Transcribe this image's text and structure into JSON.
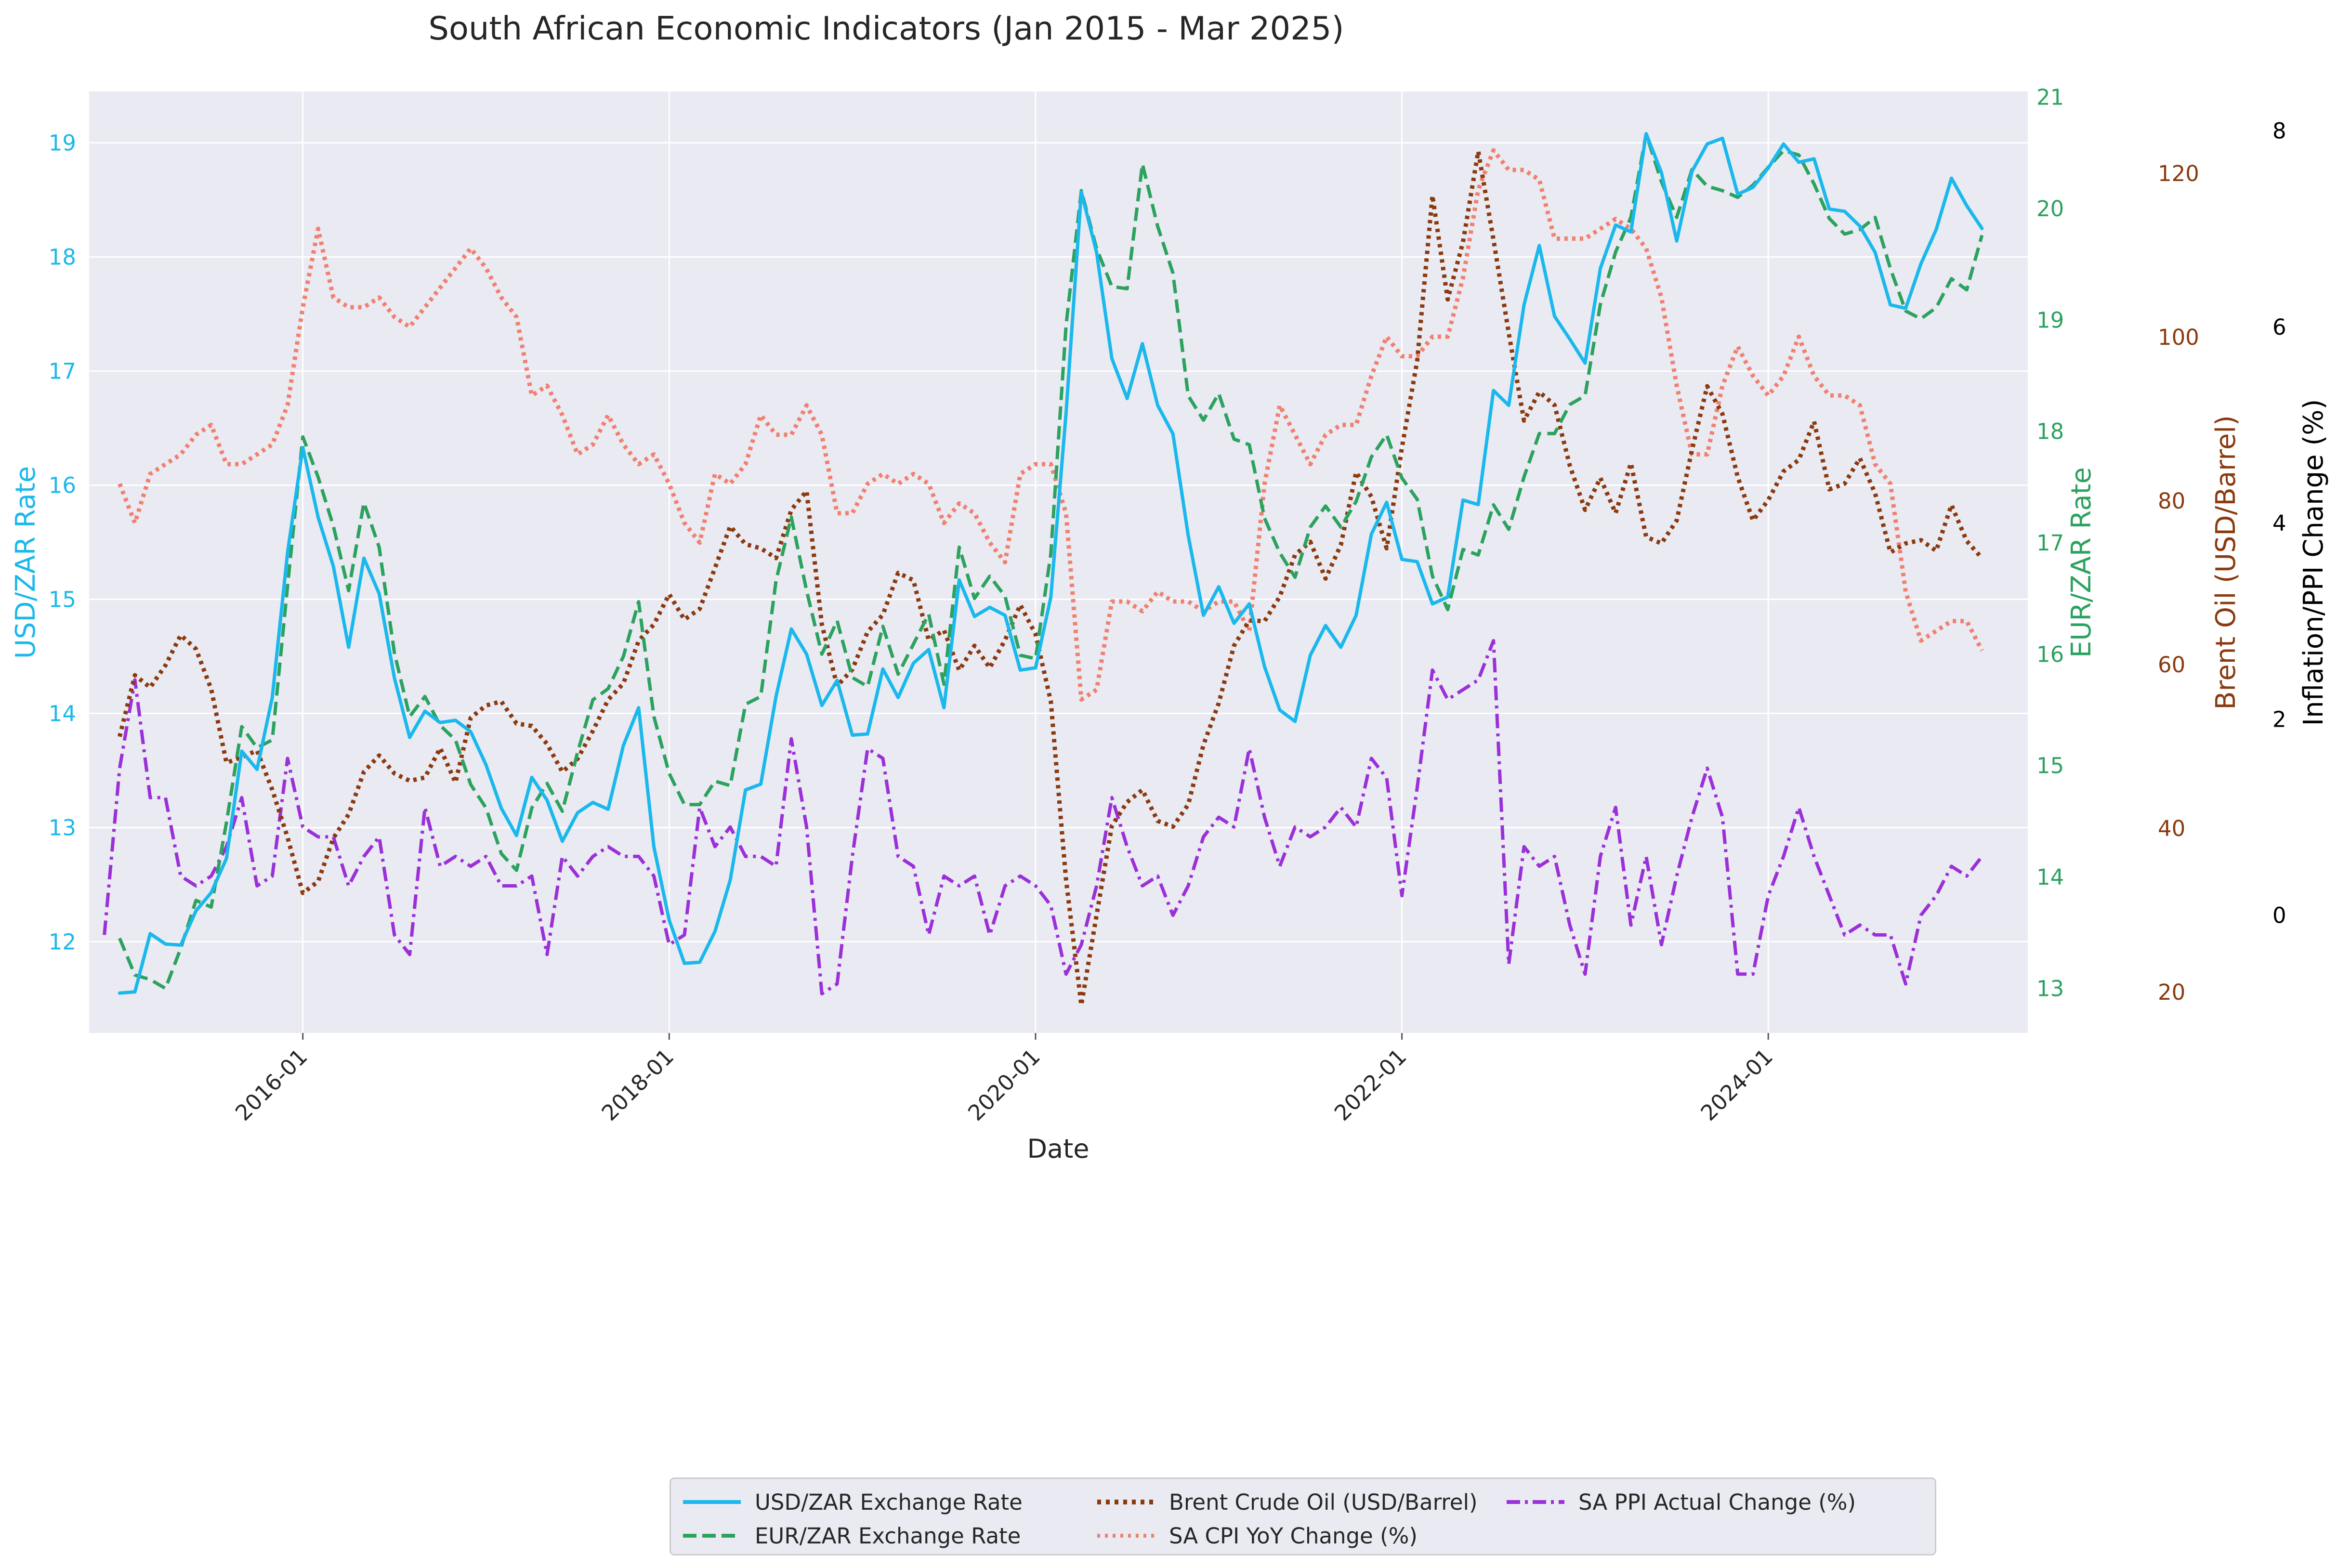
{
  "chart_data": {
    "type": "line",
    "title": "South African Economic Indicators (Jan 2015 - Mar 2025)",
    "xlabel": "Date",
    "x_tick_labels": [
      "2016-01",
      "2018-01",
      "2020-01",
      "2022-01",
      "2024-01"
    ],
    "x_range": [
      "2014-11",
      "2025-06"
    ],
    "grid": true,
    "legend_position": "bottom-center",
    "axes": {
      "usd_zar": {
        "label": "USD/ZAR Rate",
        "side": "left",
        "range": [
          11.2,
          19.45
        ],
        "ticks": [
          "12",
          "13",
          "14",
          "15",
          "16",
          "17",
          "18",
          "19"
        ],
        "color": "#1ab8ec"
      },
      "eur_zar": {
        "label": "EUR/ZAR Rate",
        "side": "right",
        "range": [
          12.6,
          21.05
        ],
        "ticks": [
          "13",
          "14",
          "15",
          "16",
          "17",
          "18",
          "19",
          "20",
          "21"
        ],
        "color": "#2ca25f"
      },
      "brent": {
        "label": "Brent Oil (USD/Barrel)",
        "side": "right",
        "range": [
          15,
          130
        ],
        "ticks": [
          "20",
          "40",
          "60",
          "80",
          "100",
          "120"
        ],
        "color": "#8b3a0f"
      },
      "inflation": {
        "label": "Inflation/PPI Change (%)",
        "side": "right",
        "range": [
          -1.2,
          8.4
        ],
        "ticks": [
          "0",
          "2",
          "4",
          "6",
          "8"
        ],
        "color": "#000000"
      }
    },
    "series": [
      {
        "name": "USD/ZAR Exchange Rate",
        "axis": "usd_zar",
        "color": "#1ab8ec",
        "style": "solid",
        "start": "2015-01",
        "values": [
          11.55,
          11.56,
          12.07,
          11.98,
          11.97,
          12.27,
          12.43,
          12.73,
          13.67,
          13.51,
          14.14,
          15.41,
          16.33,
          15.72,
          15.29,
          14.58,
          15.36,
          15.05,
          14.31,
          13.79,
          14.02,
          13.92,
          13.94,
          13.84,
          13.55,
          13.17,
          12.93,
          13.44,
          13.24,
          12.88,
          13.13,
          13.22,
          13.16,
          13.72,
          14.05,
          12.83,
          12.19,
          11.81,
          11.82,
          12.09,
          12.54,
          13.33,
          13.38,
          14.15,
          14.74,
          14.52,
          14.07,
          14.29,
          13.81,
          13.82,
          14.39,
          14.14,
          14.44,
          14.56,
          14.05,
          15.17,
          14.85,
          14.93,
          14.86,
          14.38,
          14.4,
          15.02,
          16.63,
          18.57,
          18.04,
          17.11,
          16.76,
          17.24,
          16.7,
          16.45,
          15.56,
          14.86,
          15.11,
          14.79,
          14.96,
          14.41,
          14.03,
          13.93,
          14.51,
          14.77,
          14.58,
          14.86,
          15.57,
          15.85,
          15.35,
          15.33,
          14.96,
          15.02,
          15.87,
          15.83,
          16.83,
          16.7,
          17.58,
          18.1,
          17.48,
          17.28,
          17.07,
          17.9,
          18.28,
          18.22,
          19.08,
          18.74,
          18.14,
          18.75,
          18.99,
          19.04,
          18.55,
          18.61,
          18.78,
          18.99,
          18.83,
          18.86,
          18.42,
          18.4,
          18.27,
          18.04,
          17.58,
          17.55,
          17.94,
          18.24,
          18.69,
          18.45,
          18.25
        ]
      },
      {
        "name": "EUR/ZAR Exchange Rate",
        "axis": "eur_zar",
        "color": "#2ca25f",
        "style": "dashed",
        "start": "2015-01",
        "values": [
          13.45,
          13.12,
          13.08,
          13.0,
          13.36,
          13.79,
          13.73,
          14.49,
          15.35,
          15.16,
          15.23,
          16.61,
          17.95,
          17.59,
          17.15,
          16.57,
          17.36,
          16.96,
          16.01,
          15.44,
          15.62,
          15.36,
          15.23,
          14.83,
          14.62,
          14.21,
          14.06,
          14.62,
          14.84,
          14.59,
          15.12,
          15.59,
          15.69,
          15.98,
          16.47,
          15.44,
          14.93,
          14.65,
          14.65,
          14.86,
          14.82,
          15.55,
          15.62,
          16.66,
          17.23,
          16.57,
          16.0,
          16.3,
          15.79,
          15.71,
          16.25,
          15.82,
          16.09,
          16.36,
          15.73,
          16.96,
          16.5,
          16.7,
          16.52,
          15.99,
          15.96,
          16.9,
          18.95,
          20.16,
          19.64,
          19.3,
          19.28,
          20.4,
          19.84,
          19.42,
          18.32,
          18.1,
          18.34,
          17.93,
          17.88,
          17.22,
          16.91,
          16.69,
          17.14,
          17.33,
          17.14,
          17.37,
          17.77,
          17.97,
          17.58,
          17.39,
          16.7,
          16.4,
          16.94,
          16.89,
          17.34,
          17.12,
          17.59,
          17.98,
          17.98,
          18.24,
          18.32,
          19.14,
          19.61,
          19.92,
          20.67,
          20.24,
          19.92,
          20.35,
          20.2,
          20.16,
          20.1,
          20.21,
          20.37,
          20.52,
          20.48,
          20.22,
          19.91,
          19.77,
          19.81,
          19.92,
          19.46,
          19.08,
          19.01,
          19.11,
          19.37,
          19.27,
          19.76
        ]
      },
      {
        "name": "Brent Crude Oil (USD/Barrel)",
        "axis": "brent",
        "color": "#8b3a0f",
        "style": "dotted",
        "start": "2015-01",
        "values": [
          51.2,
          58.7,
          57.2,
          59.9,
          63.6,
          61.9,
          57.0,
          48.0,
          48.7,
          49.5,
          44.7,
          38.9,
          32.1,
          33.5,
          38.8,
          41.7,
          46.9,
          48.9,
          46.7,
          45.8,
          46.2,
          49.8,
          45.6,
          53.5,
          55.0,
          55.5,
          52.8,
          52.5,
          50.3,
          46.9,
          48.5,
          51.9,
          55.7,
          57.7,
          62.9,
          64.9,
          68.6,
          65.5,
          66.8,
          71.8,
          76.9,
          74.7,
          74.2,
          73.0,
          78.9,
          81.2,
          64.9,
          57.4,
          59.4,
          64.0,
          66.1,
          71.2,
          70.3,
          63.0,
          64.2,
          59.3,
          62.3,
          59.6,
          63.0,
          67.3,
          63.7,
          55.5,
          33.7,
          18.4,
          29.4,
          40.3,
          43.2,
          44.7,
          40.9,
          40.2,
          42.9,
          50.2,
          55.3,
          62.3,
          65.4,
          65.3,
          68.3,
          73.4,
          75.0,
          70.5,
          74.6,
          83.5,
          80.5,
          74.2,
          86.5,
          97.1,
          117.3,
          104.6,
          111.6,
          122.7,
          111.9,
          100.5,
          89.8,
          93.3,
          91.7,
          84.3,
          78.9,
          82.8,
          78.5,
          84.6,
          75.6,
          74.8,
          77.6,
          86.2,
          94.0,
          90.6,
          82.9,
          77.6,
          80.1,
          83.6,
          85.0,
          89.7,
          81.4,
          82.1,
          85.2,
          80.9,
          73.7,
          74.8,
          75.2,
          73.9,
          79.5,
          75.1,
          73.0
        ]
      },
      {
        "name": "SA CPI YoY Change (%)",
        "axis": "inflation",
        "color": "#f08070",
        "style": "dotted",
        "start": "2015-01",
        "values": [
          4.4,
          4.0,
          4.5,
          4.6,
          4.7,
          4.9,
          5.0,
          4.6,
          4.6,
          4.7,
          4.8,
          5.2,
          6.2,
          7.0,
          6.3,
          6.2,
          6.2,
          6.3,
          6.1,
          6.0,
          6.2,
          6.4,
          6.6,
          6.8,
          6.6,
          6.3,
          6.1,
          5.3,
          5.4,
          5.1,
          4.7,
          4.8,
          5.1,
          4.8,
          4.6,
          4.7,
          4.4,
          4.0,
          3.8,
          4.5,
          4.4,
          4.6,
          5.1,
          4.9,
          4.9,
          5.2,
          4.9,
          4.1,
          4.1,
          4.4,
          4.5,
          4.4,
          4.5,
          4.4,
          4.0,
          4.2,
          4.1,
          3.8,
          3.6,
          4.5,
          4.6,
          4.6,
          4.1,
          2.2,
          2.3,
          3.2,
          3.2,
          3.1,
          3.3,
          3.2,
          3.2,
          3.1,
          3.2,
          3.2,
          2.9,
          4.4,
          5.2,
          4.9,
          4.6,
          4.9,
          5.0,
          5.0,
          5.5,
          5.9,
          5.7,
          5.7,
          5.9,
          5.9,
          6.5,
          7.4,
          7.8,
          7.6,
          7.6,
          7.5,
          6.9,
          6.9,
          6.9,
          7.0,
          7.1,
          7.0,
          6.8,
          6.3,
          5.4,
          4.7,
          4.7,
          5.4,
          5.8,
          5.5,
          5.3,
          5.5,
          5.9,
          5.5,
          5.3,
          5.3,
          5.2,
          4.6,
          4.4,
          3.3,
          2.8,
          2.9,
          3.0,
          3.0,
          2.7
        ]
      },
      {
        "name": "SA PPI Actual Change (%)",
        "axis": "inflation",
        "color": "#9b30d9",
        "style": "dashdot",
        "start": "2014-12",
        "values": [
          -0.2,
          1.5,
          2.4,
          1.2,
          1.2,
          0.4,
          0.3,
          0.4,
          0.7,
          1.2,
          0.3,
          0.4,
          1.6,
          0.9,
          0.8,
          0.8,
          0.3,
          0.6,
          0.8,
          -0.2,
          -0.4,
          1.1,
          0.5,
          0.6,
          0.5,
          0.6,
          0.3,
          0.3,
          0.4,
          -0.4,
          0.6,
          0.4,
          0.6,
          0.7,
          0.6,
          0.6,
          0.4,
          -0.3,
          -0.2,
          1.1,
          0.7,
          0.9,
          0.6,
          0.6,
          0.5,
          1.8,
          0.9,
          -0.8,
          -0.7,
          0.6,
          1.7,
          1.6,
          0.6,
          0.5,
          -0.2,
          0.4,
          0.3,
          0.4,
          -0.2,
          0.3,
          0.4,
          0.3,
          0.1,
          -0.6,
          -0.3,
          0.3,
          1.2,
          0.7,
          0.3,
          0.4,
          0.0,
          0.3,
          0.8,
          1.0,
          0.9,
          1.7,
          1.0,
          0.5,
          0.9,
          0.8,
          0.9,
          1.1,
          0.9,
          1.6,
          1.4,
          0.2,
          1.3,
          2.5,
          2.2,
          2.3,
          2.4,
          2.8,
          -0.5,
          0.7,
          0.5,
          0.6,
          -0.1,
          -0.6,
          0.6,
          1.1,
          -0.1,
          0.6,
          -0.3,
          0.4,
          1.0,
          1.5,
          1.0,
          -0.6,
          -0.6,
          0.2,
          0.6,
          1.1,
          0.6,
          0.2,
          -0.2,
          -0.1,
          -0.2,
          -0.2,
          -0.7,
          0.0,
          0.2,
          0.5,
          0.4,
          0.6
        ]
      }
    ]
  }
}
